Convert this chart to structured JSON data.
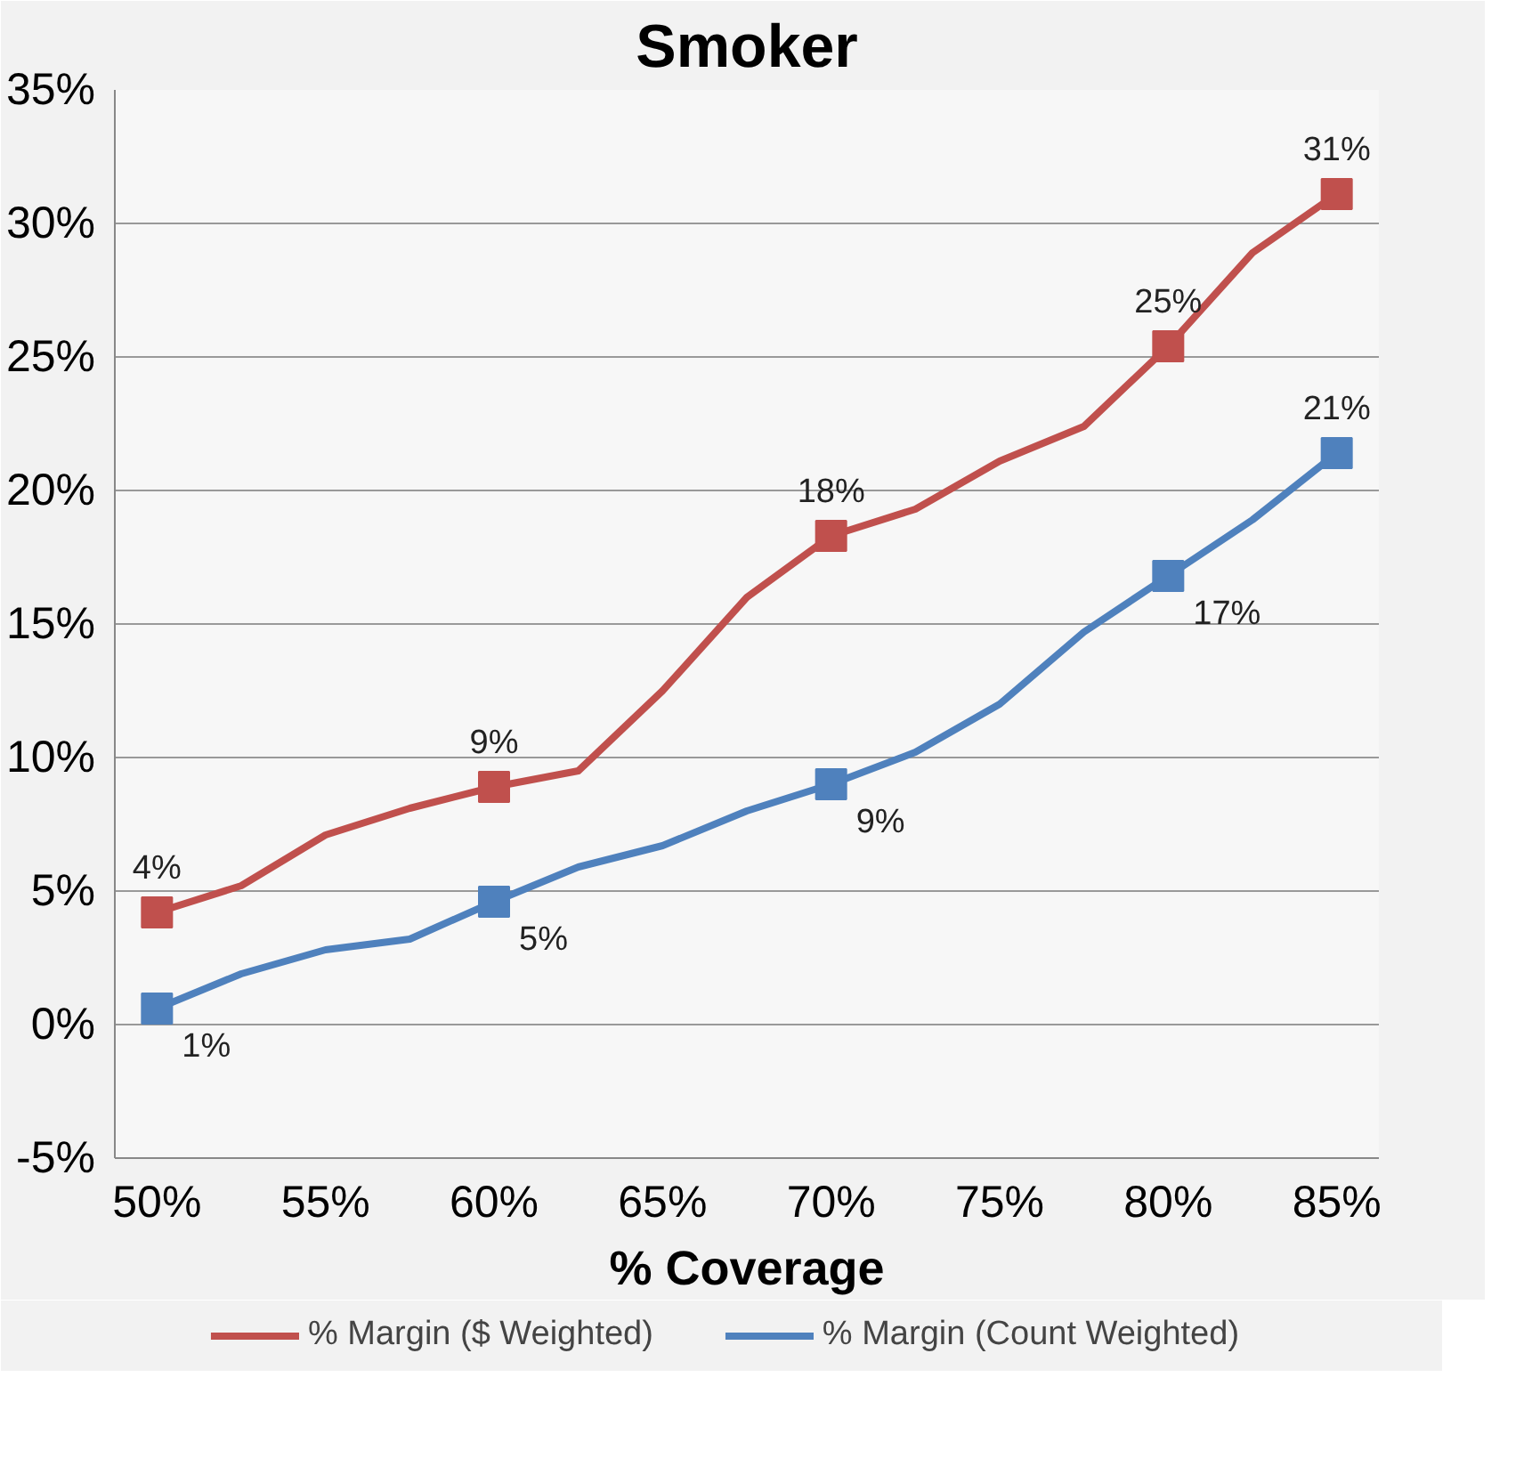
{
  "chart_data": {
    "type": "line",
    "title": "Smoker",
    "xlabel": "% Coverage",
    "x": [
      50,
      52.5,
      55,
      57.5,
      60,
      62.5,
      65,
      67.5,
      70,
      72.5,
      75,
      77.5,
      80,
      82.5,
      85
    ],
    "series": [
      {
        "name": "% Margin ($ Weighted)",
        "color": "#c0504d",
        "values": [
          4.2,
          5.2,
          7.1,
          8.1,
          8.9,
          9.5,
          12.5,
          16,
          18.3,
          19.3,
          21.1,
          22.4,
          25.4,
          28.9,
          31.1
        ],
        "value_labels": [
          "4%",
          null,
          null,
          null,
          "9%",
          null,
          null,
          null,
          "18%",
          null,
          null,
          null,
          "25%",
          null,
          "31%"
        ]
      },
      {
        "name": "% Margin (Count Weighted)",
        "color": "#4f81bd",
        "values": [
          0.6,
          1.9,
          2.8,
          3.2,
          4.6,
          5.9,
          6.7,
          8,
          9,
          10.2,
          12,
          14.7,
          16.8,
          18.9,
          21.4
        ],
        "value_labels": [
          "1%",
          null,
          null,
          null,
          "5%",
          null,
          null,
          null,
          "9%",
          null,
          null,
          null,
          "17%",
          null,
          "21%"
        ]
      },
      {
        "type": "scatter",
        "marker": "square",
        "color": "#c0504d",
        "x": [
          50,
          60,
          70,
          80,
          85
        ],
        "values": [
          4.2,
          8.9,
          18.3,
          25.4,
          31.1
        ]
      },
      {
        "type": "scatter",
        "marker": "square",
        "color": "#4f81bd",
        "x": [
          50,
          60,
          70,
          80,
          85
        ],
        "values": [
          0.6,
          4.6,
          9,
          16.8,
          21.4
        ]
      }
    ],
    "xlim": [
      48.75,
      86.25
    ],
    "xticks": [
      {
        "value": 50,
        "label": "50%"
      },
      {
        "value": 55,
        "label": "55%"
      },
      {
        "value": 60,
        "label": "60%"
      },
      {
        "value": 65,
        "label": "65%"
      },
      {
        "value": 70,
        "label": "70%"
      },
      {
        "value": 75,
        "label": "75%"
      },
      {
        "value": 80,
        "label": "80%"
      },
      {
        "value": 85,
        "label": "85%"
      }
    ],
    "ylim": [
      -5,
      35
    ],
    "yticks": [
      {
        "value": -5,
        "label": "-5%"
      },
      {
        "value": 0,
        "label": "0%"
      },
      {
        "value": 5,
        "label": "5%"
      },
      {
        "value": 10,
        "label": "10%"
      },
      {
        "value": 15,
        "label": "15%"
      },
      {
        "value": 20,
        "label": "20%"
      },
      {
        "value": 25,
        "label": "25%"
      },
      {
        "value": 30,
        "label": "30%"
      },
      {
        "value": 35,
        "label": "35%"
      }
    ],
    "grid": "y",
    "legend": "bottom",
    "line_style": "solid"
  }
}
